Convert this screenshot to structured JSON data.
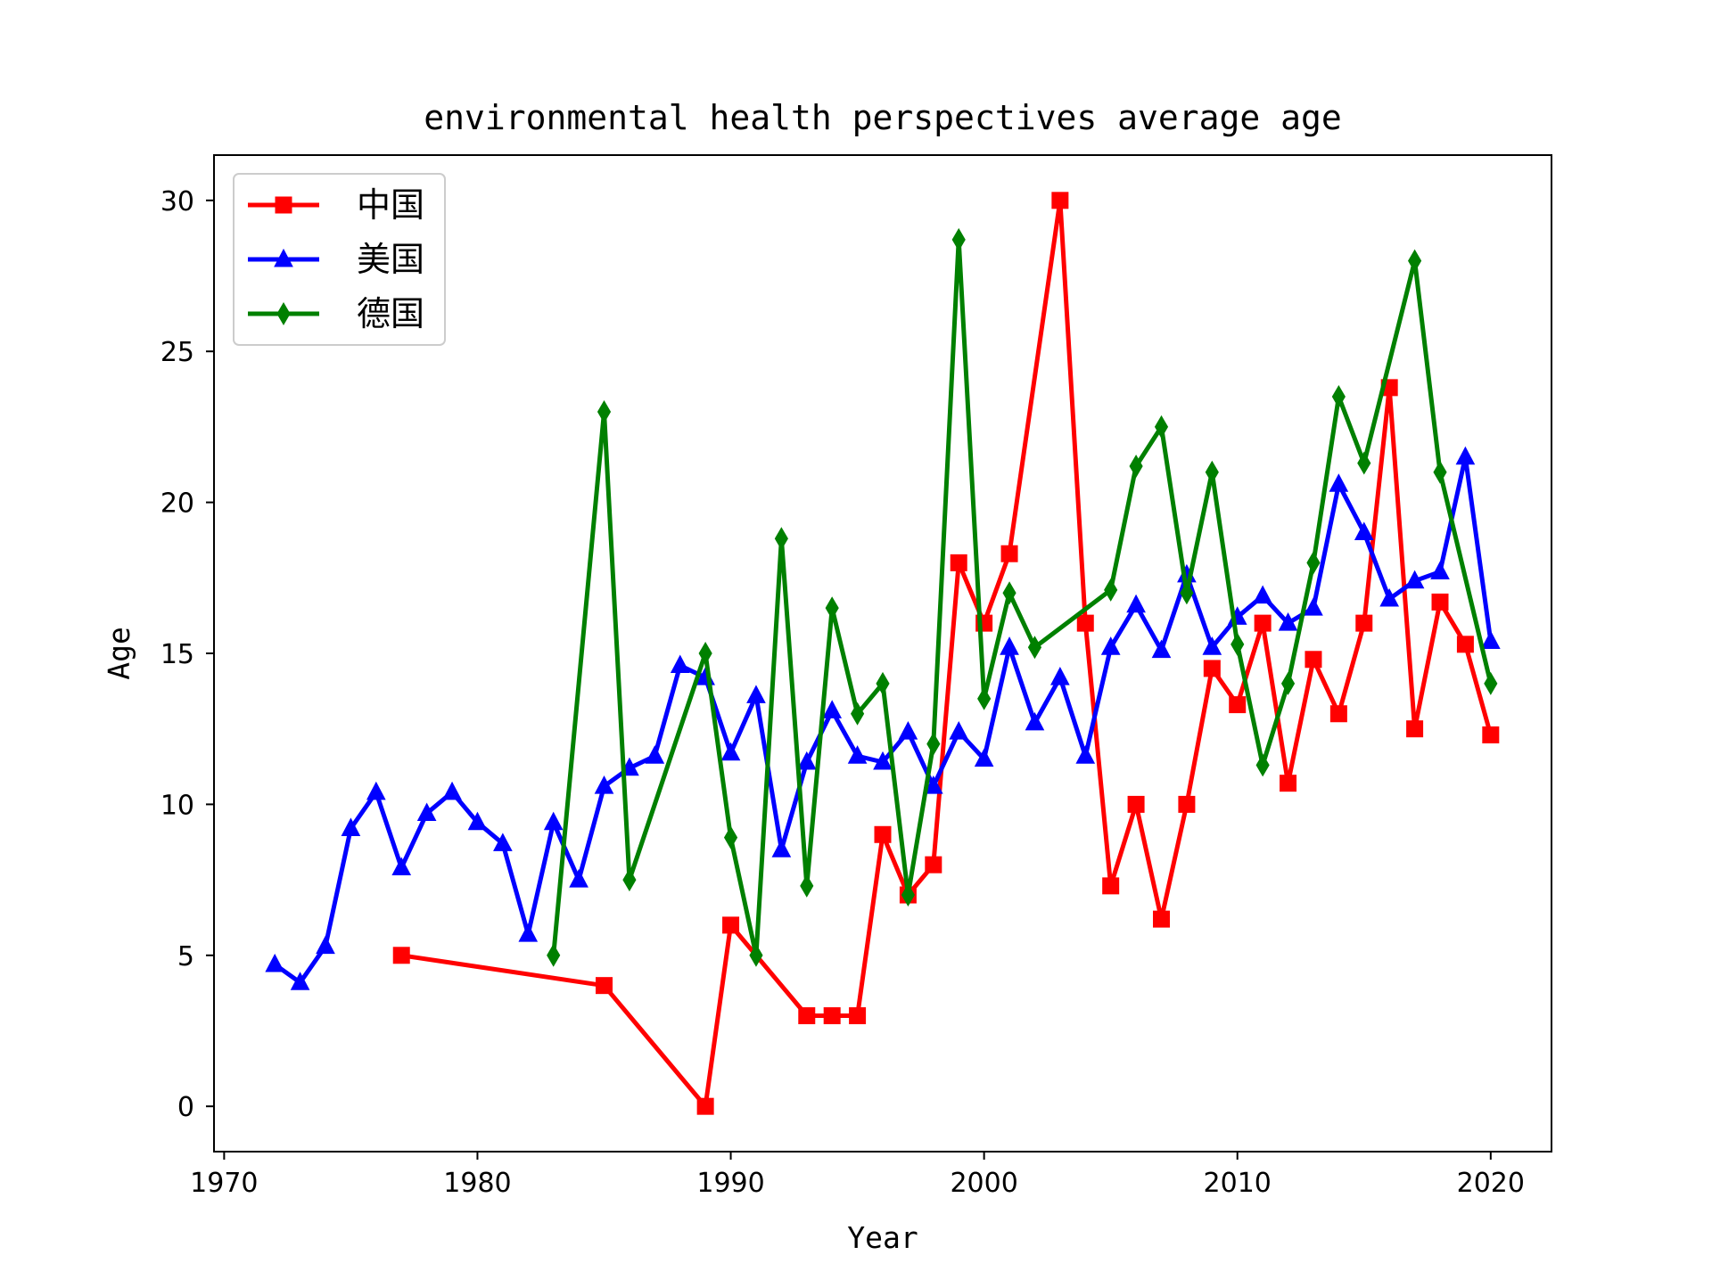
{
  "chart_data": {
    "type": "line",
    "title": "environmental health perspectives average age",
    "xlabel": "Year",
    "ylabel": "Age",
    "xlim": [
      1969.6,
      2022.4
    ],
    "ylim": [
      -1.5,
      31.5
    ],
    "xticks": [
      1970,
      1980,
      1990,
      2000,
      2010,
      2020
    ],
    "yticks": [
      0,
      5,
      10,
      15,
      20,
      25,
      30
    ],
    "grid": false,
    "legend_position": "upper-left",
    "series": [
      {
        "name": "中国",
        "color": "#ff0000",
        "marker": "square",
        "x": [
          1977,
          1985,
          1989,
          1990,
          1993,
          1994,
          1995,
          1996,
          1997,
          1998,
          1999,
          2000,
          2001,
          2003,
          2004,
          2005,
          2006,
          2007,
          2008,
          2009,
          2010,
          2011,
          2012,
          2013,
          2014,
          2015,
          2016,
          2017,
          2018,
          2019,
          2020
        ],
        "y": [
          5,
          4,
          0,
          6,
          3,
          3,
          3,
          9,
          7,
          8,
          18,
          16,
          18.3,
          30,
          16,
          7.3,
          10,
          6.2,
          10,
          14.5,
          13.3,
          16,
          10.7,
          14.8,
          13,
          16,
          23.8,
          12.5,
          16.7,
          15.3,
          12.3
        ]
      },
      {
        "name": "美国",
        "color": "#0000ff",
        "marker": "triangle",
        "x": [
          1972,
          1973,
          1974,
          1975,
          1976,
          1977,
          1978,
          1979,
          1980,
          1981,
          1982,
          1983,
          1984,
          1985,
          1986,
          1987,
          1988,
          1989,
          1990,
          1991,
          1992,
          1993,
          1994,
          1995,
          1996,
          1997,
          1998,
          1999,
          2000,
          2001,
          2002,
          2003,
          2004,
          2005,
          2006,
          2007,
          2008,
          2009,
          2010,
          2011,
          2012,
          2013,
          2014,
          2015,
          2016,
          2017,
          2018,
          2019,
          2020
        ],
        "y": [
          4.7,
          4.1,
          5.3,
          9.2,
          10.4,
          7.9,
          9.7,
          10.4,
          9.4,
          8.7,
          5.7,
          9.4,
          7.5,
          10.6,
          11.2,
          11.6,
          14.6,
          14.2,
          11.7,
          13.6,
          8.5,
          11.4,
          13.1,
          11.6,
          11.4,
          12.4,
          10.6,
          12.4,
          11.5,
          15.2,
          12.7,
          14.2,
          11.6,
          15.2,
          16.6,
          15.1,
          17.6,
          15.2,
          16.2,
          16.9,
          16,
          16.5,
          20.6,
          19,
          16.8,
          17.4,
          17.7,
          21.5,
          15.4
        ]
      },
      {
        "name": "德国",
        "color": "#008000",
        "marker": "thin_diamond",
        "x": [
          1983,
          1985,
          1986,
          1989,
          1990,
          1991,
          1992,
          1993,
          1994,
          1995,
          1996,
          1997,
          1998,
          1999,
          2000,
          2001,
          2002,
          2005,
          2006,
          2007,
          2008,
          2009,
          2010,
          2011,
          2012,
          2013,
          2014,
          2015,
          2017,
          2018,
          2020
        ],
        "y": [
          5,
          23,
          7.5,
          15,
          8.9,
          5,
          18.8,
          7.3,
          16.5,
          13,
          14,
          7,
          12,
          28.7,
          13.5,
          17,
          15.2,
          17.1,
          21.2,
          22.5,
          17,
          21,
          15.3,
          11.3,
          14,
          18,
          23.5,
          21.3,
          28,
          21,
          14
        ]
      }
    ]
  }
}
